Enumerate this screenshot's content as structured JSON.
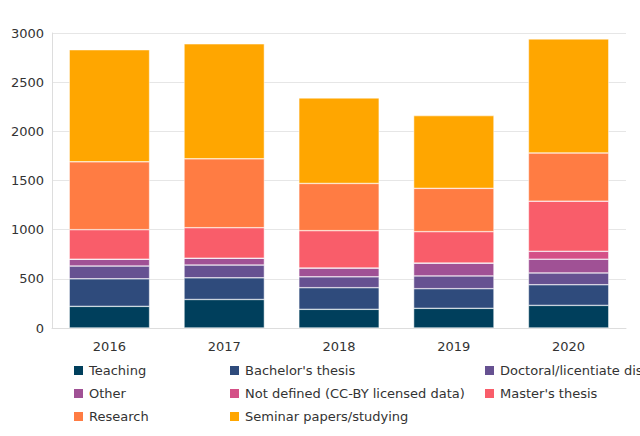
{
  "chart_data": {
    "type": "bar",
    "stacked": true,
    "grid": true,
    "legend": "bottom",
    "categories": [
      "2016",
      "2017",
      "2018",
      "2019",
      "2020"
    ],
    "ylim": [
      0,
      3000
    ],
    "yticks": [
      0,
      500,
      1000,
      1500,
      2000,
      2500,
      3000
    ],
    "series": [
      {
        "name": "Teaching",
        "color": "#003f5c",
        "values": [
          220,
          290,
          190,
          200,
          230
        ]
      },
      {
        "name": "Bachelor's thesis",
        "color": "#2f4b7c",
        "values": [
          280,
          220,
          220,
          200,
          210
        ]
      },
      {
        "name": "Doctoral/licentiate dissertation",
        "color": "#665191",
        "values": [
          130,
          130,
          110,
          130,
          120
        ]
      },
      {
        "name": "Other",
        "color": "#a05195",
        "values": [
          70,
          70,
          90,
          130,
          140
        ]
      },
      {
        "name": "Not defined (CC-BY licensed data)",
        "color": "#d45087",
        "values": [
          0,
          0,
          0,
          0,
          80
        ]
      },
      {
        "name": "Master's thesis",
        "color": "#f95d6a",
        "values": [
          300,
          310,
          380,
          320,
          510
        ]
      },
      {
        "name": "Research",
        "color": "#ff7c43",
        "values": [
          690,
          700,
          480,
          440,
          490
        ]
      },
      {
        "name": "Seminar papers/studying",
        "color": "#ffa600",
        "values": [
          1140,
          1170,
          870,
          740,
          1160
        ]
      }
    ]
  }
}
